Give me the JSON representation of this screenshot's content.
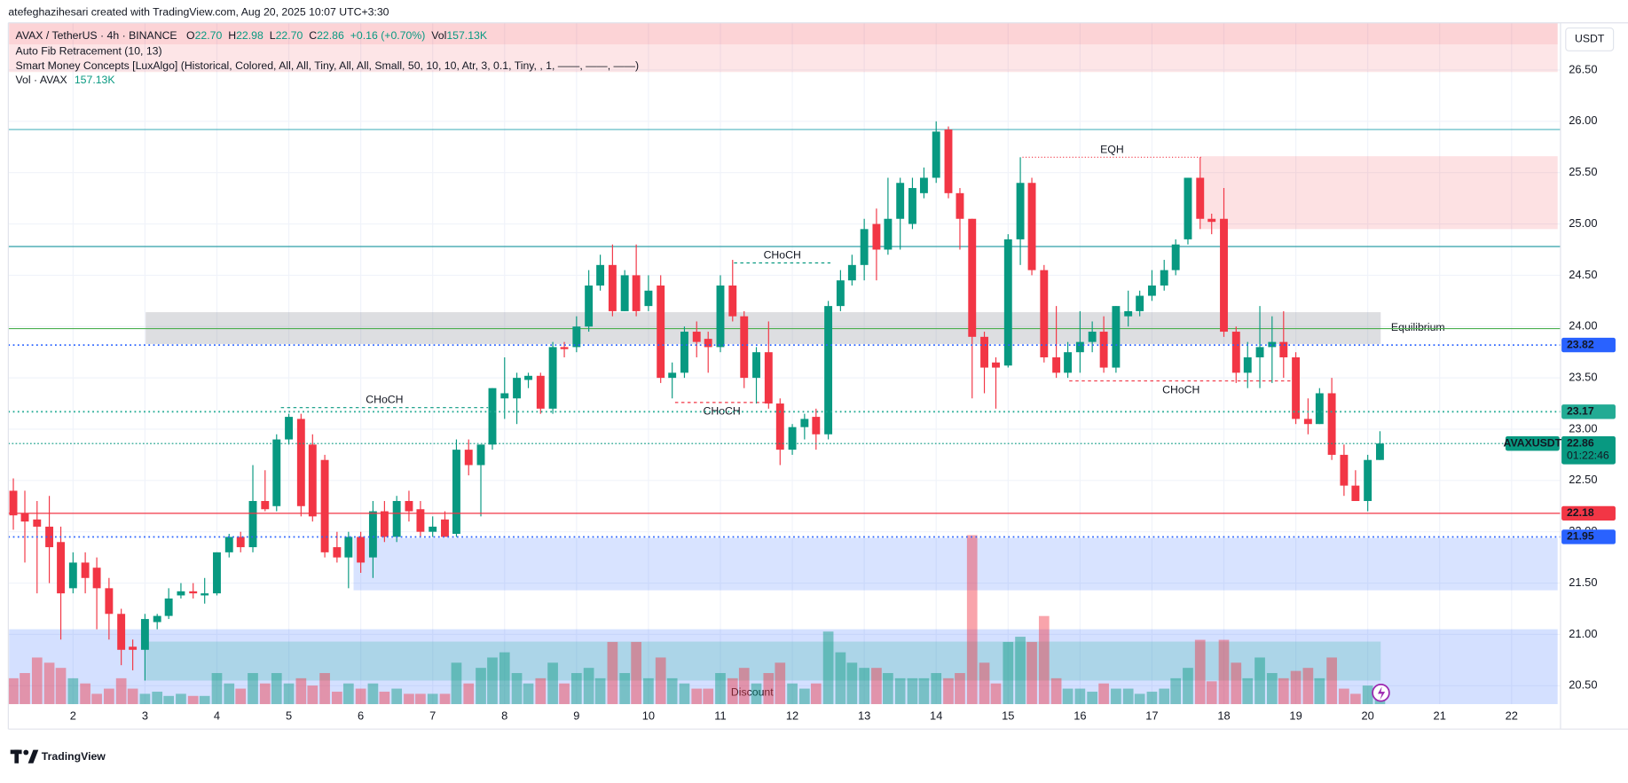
{
  "header": {
    "attribution": "atefeghazihesari created with TradingView.com, Aug 20, 2025 10:07 UTC+3:30",
    "currency": "USDT",
    "logo": "TradingView"
  },
  "legend": {
    "symbol": "AVAX / TetherUS · 4h · BINANCE",
    "ohlc": [
      {
        "key": "O",
        "value": "22.70"
      },
      {
        "key": "H",
        "value": "22.98"
      },
      {
        "key": "L",
        "value": "22.70"
      },
      {
        "key": "C",
        "value": "22.86"
      }
    ],
    "change": "+0.16 (+0.70%)",
    "vol_key": "Vol",
    "vol_value": "157.13K",
    "indicators": [
      "Auto Fib Retracement (10, 13)",
      "Smart Money Concepts [LuxAlgo] (Historical, Colored, All, All, Tiny, All, All, Small, 50, 10, 10, Atr, 3, 0.1, Tiny, , 1, ——, ——, ——)"
    ],
    "volume_key": "Vol · AVAX",
    "volume_value": "157.13K"
  },
  "chart_data": {
    "type": "candlestick",
    "up_color": "#089981",
    "down_color": "#f23645",
    "grid": true,
    "xlim": [
      1.1,
      22.68
    ],
    "ylim": [
      20.32,
      26.96
    ],
    "xticks": [
      2,
      3,
      4,
      5,
      6,
      7,
      8,
      9,
      10,
      11,
      12,
      13,
      14,
      15,
      16,
      17,
      18,
      19,
      20,
      21,
      22
    ],
    "yticks": [
      {
        "value": 20.5,
        "label": "20.50"
      },
      {
        "value": 21,
        "label": "21.00"
      },
      {
        "value": 21.5,
        "label": "21.50"
      },
      {
        "value": 22,
        "label": "22.00"
      },
      {
        "value": 22.5,
        "label": "22.50"
      },
      {
        "value": 23,
        "label": "23.00"
      },
      {
        "value": 23.5,
        "label": "23.50"
      },
      {
        "value": 24,
        "label": "24.00"
      },
      {
        "value": 24.5,
        "label": "24.50"
      },
      {
        "value": 25,
        "label": "25.00"
      },
      {
        "value": 25.5,
        "label": "25.50"
      },
      {
        "value": 26,
        "label": "26.00"
      },
      {
        "value": 26.5,
        "label": "26.50"
      }
    ],
    "x": [
      1.17,
      1.33,
      1.5,
      1.67,
      1.83,
      2,
      2.17,
      2.33,
      2.5,
      2.67,
      2.83,
      3,
      3.17,
      3.33,
      3.5,
      3.67,
      3.83,
      4,
      4.17,
      4.33,
      4.5,
      4.67,
      4.83,
      5,
      5.17,
      5.33,
      5.5,
      5.67,
      5.83,
      6,
      6.17,
      6.33,
      6.5,
      6.67,
      6.83,
      7,
      7.17,
      7.33,
      7.5,
      7.67,
      7.83,
      8,
      8.17,
      8.33,
      8.5,
      8.67,
      8.83,
      9,
      9.17,
      9.33,
      9.5,
      9.67,
      9.83,
      10,
      10.17,
      10.33,
      10.5,
      10.67,
      10.83,
      11,
      11.17,
      11.33,
      11.5,
      11.67,
      11.83,
      12,
      12.17,
      12.33,
      12.5,
      12.67,
      12.83,
      13,
      13.17,
      13.33,
      13.5,
      13.67,
      13.83,
      14,
      14.17,
      14.33,
      14.5,
      14.67,
      14.83,
      15,
      15.17,
      15.33,
      15.5,
      15.67,
      15.83,
      16,
      16.17,
      16.33,
      16.5,
      16.67,
      16.83,
      17,
      17.17,
      17.33,
      17.5,
      17.67,
      17.83,
      18,
      18.17,
      18.33,
      18.5,
      18.67,
      18.83,
      19,
      19.17,
      19.33,
      19.5,
      19.67,
      19.83,
      20,
      20.17
    ],
    "open": [
      22.4,
      22.18,
      22.12,
      22.05,
      21.9,
      21.45,
      21.7,
      21.65,
      21.45,
      21.2,
      20.88,
      20.85,
      21.12,
      21.18,
      21.38,
      21.42,
      21.38,
      21.4,
      21.8,
      21.95,
      21.85,
      22.3,
      22.25,
      22.9,
      23.1,
      22.85,
      22.7,
      21.85,
      21.75,
      21.95,
      21.75,
      22.2,
      21.95,
      22.3,
      22.22,
      22.0,
      22.12,
      21.98,
      22.8,
      22.65,
      22.85,
      23.3,
      23.3,
      23.48,
      23.52,
      23.2,
      23.8,
      23.8,
      24.0,
      24.4,
      24.6,
      24.15,
      24.5,
      24.2,
      24.4,
      23.5,
      23.55,
      23.95,
      23.88,
      23.8,
      24.4,
      24.1,
      23.5,
      23.75,
      23.25,
      22.8,
      23.02,
      23.12,
      22.95,
      24.2,
      24.45,
      24.6,
      25.0,
      24.75,
      25.05,
      25.0,
      25.3,
      25.45,
      25.92,
      25.3,
      25.05,
      23.9,
      23.65,
      23.62,
      24.85,
      25.4,
      24.55,
      23.7,
      23.55,
      23.75,
      23.85,
      23.95,
      23.6,
      24.1,
      24.15,
      24.3,
      24.4,
      24.55,
      24.85,
      25.45,
      25.05,
      25.05,
      23.95,
      23.55,
      23.7,
      23.8,
      23.85,
      23.7,
      23.1,
      23.05,
      23.35,
      22.75,
      22.45,
      22.3,
      22.7
    ],
    "high": [
      22.52,
      22.4,
      22.3,
      22.35,
      22.05,
      21.8,
      21.8,
      21.75,
      21.55,
      21.25,
      20.95,
      21.2,
      21.2,
      21.45,
      21.5,
      21.5,
      21.55,
      21.8,
      21.98,
      22.0,
      22.65,
      22.6,
      22.95,
      23.15,
      23.15,
      22.95,
      22.75,
      22.0,
      22.0,
      22.0,
      22.3,
      22.3,
      22.35,
      22.4,
      22.3,
      22.15,
      22.2,
      22.9,
      22.9,
      22.85,
      23.4,
      23.7,
      23.55,
      23.55,
      23.55,
      23.85,
      23.85,
      24.1,
      24.55,
      24.7,
      24.8,
      24.55,
      24.8,
      24.5,
      24.5,
      23.65,
      24.0,
      24.05,
      23.95,
      24.5,
      24.65,
      24.15,
      23.8,
      24.05,
      23.3,
      23.05,
      23.15,
      23.2,
      24.25,
      24.55,
      24.7,
      25.05,
      25.15,
      25.45,
      25.45,
      25.45,
      25.55,
      26.0,
      25.95,
      25.35,
      25.05,
      23.95,
      23.7,
      24.9,
      25.65,
      25.45,
      24.6,
      24.2,
      23.85,
      24.15,
      24.05,
      24.1,
      24.2,
      24.35,
      24.35,
      24.55,
      24.65,
      24.85,
      25.45,
      25.65,
      25.1,
      25.35,
      24.0,
      23.85,
      24.2,
      24.1,
      24.15,
      23.75,
      23.3,
      23.4,
      23.5,
      22.85,
      22.6,
      22.75,
      22.98
    ],
    "low": [
      22.02,
      21.7,
      21.4,
      21.5,
      20.95,
      21.4,
      21.4,
      21.05,
      20.95,
      20.7,
      20.65,
      20.55,
      21.05,
      21.15,
      21.35,
      21.35,
      21.3,
      21.38,
      21.75,
      21.8,
      21.8,
      22.2,
      22.2,
      22.85,
      22.15,
      22.1,
      21.75,
      21.7,
      21.45,
      21.6,
      21.55,
      21.9,
      21.9,
      22.1,
      21.95,
      21.95,
      21.95,
      21.95,
      22.55,
      22.15,
      22.8,
      23.1,
      23.05,
      23.4,
      23.15,
      23.15,
      23.7,
      23.75,
      23.95,
      24.35,
      24.1,
      24.15,
      24.1,
      24.15,
      23.45,
      23.3,
      23.5,
      23.7,
      23.55,
      23.75,
      24.05,
      23.4,
      23.25,
      23.2,
      22.65,
      22.75,
      22.9,
      22.8,
      22.9,
      24.15,
      24.4,
      24.45,
      24.45,
      24.7,
      24.75,
      24.95,
      25.25,
      25.4,
      25.25,
      24.75,
      23.3,
      23.35,
      23.2,
      23.6,
      24.6,
      24.5,
      23.65,
      23.5,
      23.5,
      23.55,
      23.75,
      23.55,
      23.55,
      24.0,
      24.1,
      24.25,
      24.35,
      24.5,
      24.8,
      24.95,
      24.9,
      23.9,
      23.45,
      23.4,
      23.4,
      23.45,
      23.5,
      23.05,
      22.95,
      23.05,
      22.7,
      22.35,
      22.3,
      22.2,
      22.7
    ],
    "close": [
      22.16,
      22.1,
      22.05,
      21.85,
      21.4,
      21.7,
      21.55,
      21.45,
      21.2,
      20.85,
      20.85,
      21.15,
      21.18,
      21.35,
      21.42,
      21.4,
      21.4,
      21.8,
      21.95,
      21.85,
      22.3,
      22.22,
      22.9,
      23.12,
      22.25,
      22.15,
      21.8,
      21.75,
      21.95,
      21.7,
      22.2,
      21.95,
      22.3,
      22.2,
      22.0,
      22.05,
      21.95,
      22.8,
      22.65,
      22.85,
      23.4,
      23.35,
      23.5,
      23.52,
      23.2,
      23.8,
      23.78,
      24.0,
      24.4,
      24.6,
      24.15,
      24.5,
      24.15,
      24.35,
      23.5,
      23.55,
      23.95,
      23.85,
      23.8,
      24.4,
      24.1,
      23.5,
      23.75,
      23.25,
      22.8,
      23.02,
      23.1,
      22.95,
      24.2,
      24.45,
      24.6,
      24.95,
      24.75,
      25.05,
      25.4,
      25.35,
      25.45,
      25.9,
      25.3,
      25.05,
      23.9,
      23.6,
      23.6,
      24.85,
      25.4,
      24.55,
      23.7,
      23.55,
      23.75,
      23.85,
      23.95,
      23.6,
      24.2,
      24.15,
      24.3,
      24.4,
      24.55,
      24.8,
      25.45,
      25.05,
      25.02,
      23.95,
      23.55,
      23.7,
      23.8,
      23.85,
      23.7,
      23.1,
      23.05,
      23.35,
      22.75,
      22.45,
      22.3,
      22.7,
      22.86
    ],
    "volume": {
      "name": "Vol · AVAX",
      "values": [
        245,
        294,
        441,
        392,
        343,
        245,
        196,
        98,
        147,
        245,
        147,
        98,
        118,
        78,
        98,
        78,
        78,
        294,
        196,
        147,
        294,
        196,
        294,
        196,
        245,
        176,
        294,
        118,
        196,
        147,
        196,
        118,
        147,
        98,
        98,
        98,
        98,
        392,
        196,
        343,
        441,
        490,
        294,
        196,
        245,
        392,
        196,
        294,
        343,
        245,
        588,
        294,
        588,
        245,
        441,
        245,
        196,
        147,
        147,
        294,
        245,
        343,
        196,
        294,
        392,
        196,
        147,
        196,
        686,
        490,
        392,
        343,
        343,
        294,
        245,
        245,
        245,
        294,
        245,
        294,
        1597,
        392,
        196,
        588,
        637,
        588,
        833,
        245,
        147,
        147,
        118,
        196,
        147,
        147,
        98,
        118,
        147,
        245,
        343,
        608,
        216,
        608,
        392,
        245,
        441,
        294,
        245,
        314,
        343,
        245,
        441,
        147,
        98,
        176,
        157.13
      ]
    },
    "fib_levels": [
      {
        "value": 25.92,
        "color": "#4fb3bf"
      },
      {
        "value": 24.78,
        "color": "#2f9fa8"
      },
      {
        "value": 23.98,
        "color": "#4caf50"
      }
    ],
    "price_lines": [
      {
        "value": 23.82,
        "color": "#2962ff",
        "style": "dotted"
      },
      {
        "value": 23.17,
        "color": "#22ab94",
        "style": "dotted"
      },
      {
        "value": 22.18,
        "color": "#f23645",
        "style": "solid"
      },
      {
        "value": 21.95,
        "color": "#2962ff",
        "style": "dotted"
      }
    ],
    "last_price": {
      "name": "AVAXUSDT",
      "value": 22.86,
      "countdown": "01:22:46",
      "color": "#089981"
    },
    "zones": [
      {
        "x": [
          1.11,
          22.64
        ],
        "y": [
          26.48,
          26.96
        ],
        "color": "rgba(242,54,69,0.13)"
      },
      {
        "x": [
          1.11,
          22.64
        ],
        "y": [
          26.75,
          26.96
        ],
        "color": "rgba(242,54,69,0.1)"
      },
      {
        "name": "Equilibrium",
        "x": [
          3.01,
          20.18
        ],
        "y": [
          23.83,
          24.14
        ],
        "color": "rgba(120,123,134,0.25)"
      },
      {
        "x": [
          17.68,
          22.64
        ],
        "y": [
          24.95,
          25.66
        ],
        "color": "rgba(242,54,69,0.15)"
      },
      {
        "x": [
          5.9,
          22.64
        ],
        "y": [
          21.43,
          21.94
        ],
        "color": "rgba(41,98,255,0.18)"
      },
      {
        "name": "Discount",
        "x": [
          1.11,
          22.64
        ],
        "y": [
          20.32,
          21.05
        ],
        "color": "rgba(41,98,255,0.2)"
      },
      {
        "x": [
          3.01,
          20.18
        ],
        "y": [
          20.55,
          20.93
        ],
        "color": "rgba(34,171,148,0.22)"
      }
    ],
    "annotations": [
      {
        "text": "CHoCH",
        "x": [
          4.89,
          7.77
        ],
        "y": 23.21,
        "color": "#089981",
        "pos": "above"
      },
      {
        "text": "CHoCH",
        "x": [
          10.37,
          11.67
        ],
        "y": 23.26,
        "color": "#f23645",
        "pos": "below"
      },
      {
        "text": "CHoCH",
        "x": [
          11.19,
          12.53
        ],
        "y": 24.62,
        "color": "#089981",
        "pos": "above"
      },
      {
        "text": "EQH",
        "x": [
          15.2,
          17.69
        ],
        "y": 25.65,
        "color": "#f23645",
        "pos": "above"
      },
      {
        "text": "CHoCH",
        "x": [
          15.85,
          18.96
        ],
        "y": 23.47,
        "color": "#f23645",
        "pos": "below"
      }
    ]
  }
}
